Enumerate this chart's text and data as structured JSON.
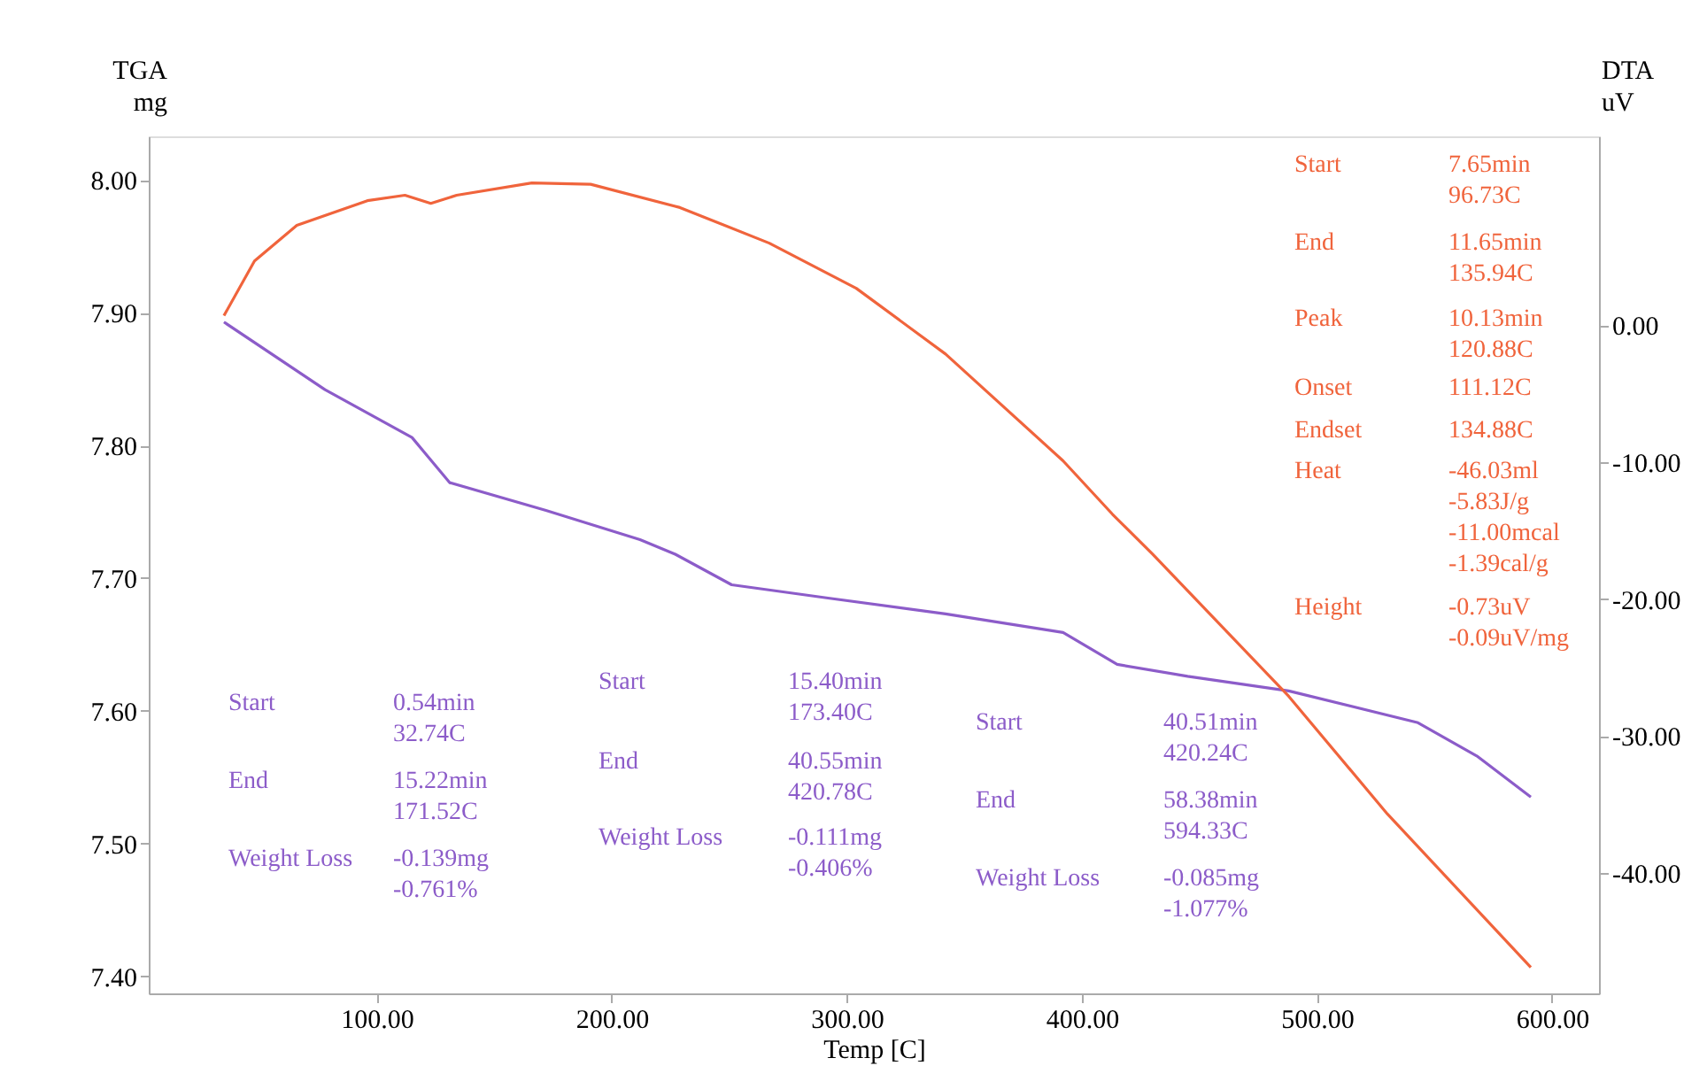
{
  "chart_data": {
    "type": "line",
    "xlabel": "Temp [C]",
    "ylabel": "TGA\nmg",
    "y2label": "DTA\nuV",
    "xlim": [
      3,
      620
    ],
    "xticks": [
      {
        "value": 100,
        "label": "100.00"
      },
      {
        "value": 200,
        "label": "200.00"
      },
      {
        "value": 300,
        "label": "300.00"
      },
      {
        "value": 400,
        "label": "400.00"
      },
      {
        "value": 500,
        "label": "500.00"
      },
      {
        "value": 600,
        "label": "600.00"
      }
    ],
    "ylim": [
      7.387,
      8.033
    ],
    "yticks": [
      {
        "value": 7.4,
        "label": "7.40"
      },
      {
        "value": 7.5,
        "label": "7.50"
      },
      {
        "value": 7.6,
        "label": "7.60"
      },
      {
        "value": 7.7,
        "label": "7.70"
      },
      {
        "value": 7.8,
        "label": "7.80"
      },
      {
        "value": 7.9,
        "label": "7.90"
      },
      {
        "value": 8.0,
        "label": "8.00"
      }
    ],
    "y2lim": [
      -48.8,
      13.8
    ],
    "y2ticks": [
      {
        "value": -40,
        "label": "-40.00"
      },
      {
        "value": -30,
        "label": "-30.00"
      },
      {
        "value": -20,
        "label": "-20.00"
      },
      {
        "value": -10,
        "label": "-10.00"
      },
      {
        "value": 0,
        "label": "0.00"
      }
    ],
    "grid": false,
    "marker": "none",
    "line_style": "solid",
    "series": [
      {
        "color": "#8c5cc9",
        "x": [
          35,
          78,
          115,
          131,
          172,
          212,
          227,
          251,
          292,
          342,
          392,
          415,
          445,
          488,
          543,
          568,
          591
        ],
        "values": [
          7.893,
          7.842,
          7.806,
          7.772,
          7.751,
          7.729,
          7.718,
          7.695,
          7.685,
          7.673,
          7.659,
          7.635,
          7.626,
          7.615,
          7.591,
          7.566,
          7.535
        ]
      },
      {
        "color": "#f0643c",
        "axis": "y2",
        "x": [
          35,
          48,
          66,
          96,
          112,
          123,
          134,
          166,
          191,
          229,
          267,
          304,
          342,
          392,
          413,
          430,
          488,
          530,
          591
        ],
        "values": [
          0.7,
          4.7,
          7.3,
          9.1,
          9.5,
          8.9,
          9.5,
          10.4,
          10.3,
          8.6,
          6.0,
          2.7,
          -2.1,
          -9.9,
          -13.8,
          -16.7,
          -27.1,
          -35.7,
          -46.9
        ]
      }
    ],
    "annotations": [
      "Start",
      "7.65min\n96.73C",
      "End",
      "11.65min\n135.94C",
      "Peak",
      "10.13min\n120.88C",
      "Onset",
      "111.12C",
      "Endset",
      "134.88C",
      "Heat",
      "-46.03ml\n-5.83J/g\n-11.00mcal\n-1.39cal/g",
      "Height",
      "-0.73uV\n-0.09uV/mg",
      "Start",
      "0.54min\n32.74C",
      "End",
      "15.22min\n171.52C",
      "Weight Loss",
      "-0.139mg\n-0.761%",
      "Start",
      "15.40min\n173.40C",
      "End",
      "40.55min\n420.78C",
      "Weight Loss",
      "-0.111mg\n-0.406%",
      "Start",
      "40.51min\n420.24C",
      "End",
      "58.38min\n594.33C",
      "Weight Loss",
      "-0.085mg\n-1.077%"
    ]
  }
}
